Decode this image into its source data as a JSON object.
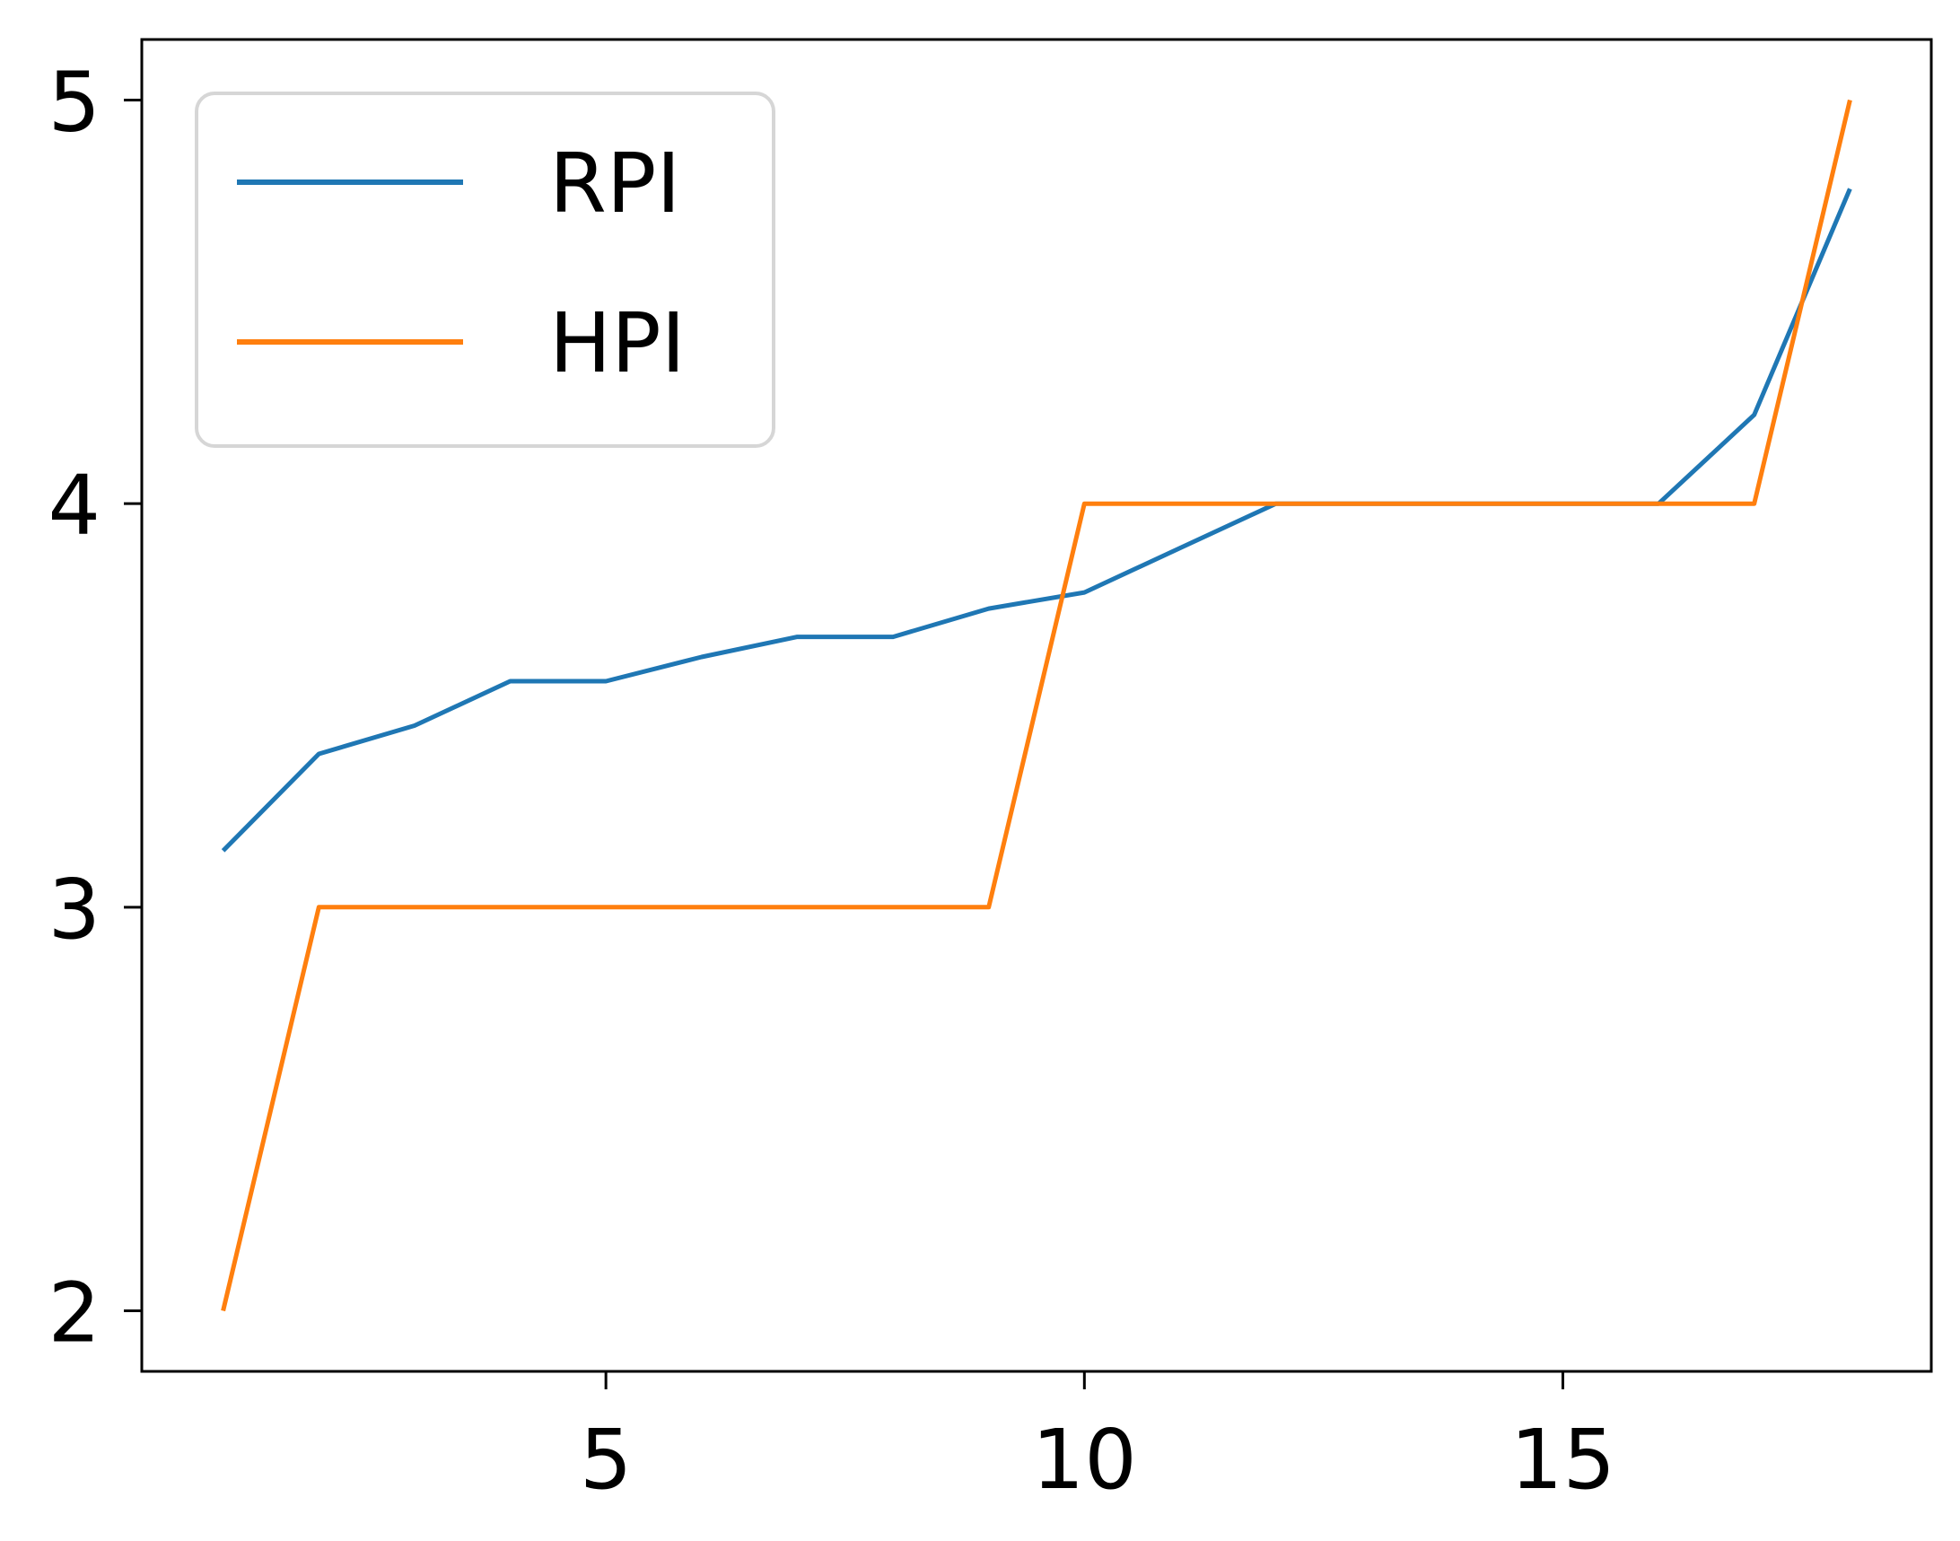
{
  "chart_data": {
    "type": "line",
    "title": "",
    "xlabel": "",
    "ylabel": "",
    "xlim": [
      0.15,
      18.85
    ],
    "ylim": [
      1.85,
      5.15
    ],
    "xticks": [
      5,
      10,
      15
    ],
    "yticks": [
      2,
      3,
      4,
      5
    ],
    "grid": false,
    "legend_position": "top-left",
    "x": [
      1,
      2,
      3,
      4,
      5,
      6,
      7,
      8,
      9,
      10,
      11,
      12,
      13,
      14,
      15,
      16,
      17,
      18
    ],
    "series": [
      {
        "name": "RPI",
        "color": "#1f77b4",
        "values": [
          3.14,
          3.38,
          3.45,
          3.56,
          3.56,
          3.62,
          3.67,
          3.67,
          3.74,
          3.78,
          3.89,
          4.0,
          4.0,
          4.0,
          4.0,
          4.0,
          4.22,
          4.78
        ]
      },
      {
        "name": "HPI",
        "color": "#ff7f0e",
        "values": [
          2,
          3,
          3,
          3,
          3,
          3,
          3,
          3,
          3,
          4,
          4,
          4,
          4,
          4,
          4,
          4,
          4,
          5
        ]
      }
    ]
  }
}
